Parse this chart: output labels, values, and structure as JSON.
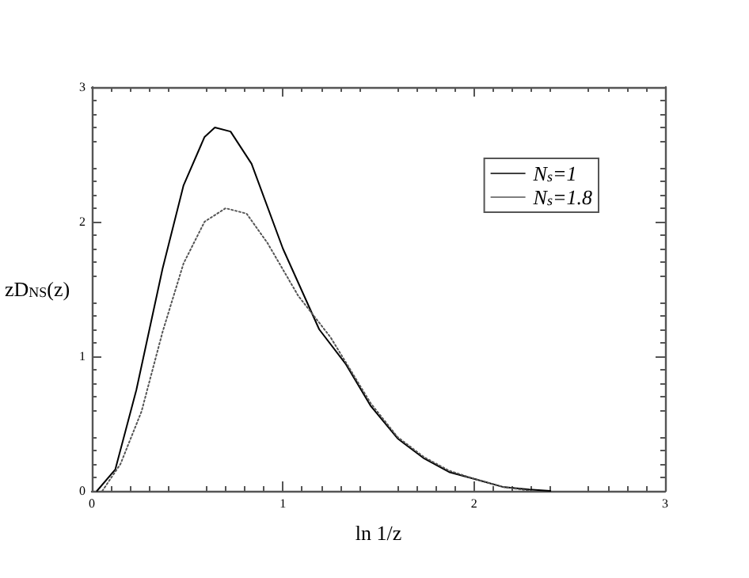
{
  "chart_data": {
    "type": "line",
    "xlabel": "ln 1/z",
    "ylabel": "zD$_{NS}$(z)",
    "xlim": [
      0,
      3
    ],
    "xticks": [
      0,
      1,
      2,
      3
    ],
    "ylim": [
      0,
      3
    ],
    "yticks": [
      0,
      1,
      2,
      3
    ],
    "grid": false,
    "legend": "top right",
    "marker": "none",
    "series": [
      {
        "name": "N$_{s}$=1",
        "color": "#000000",
        "line_style": "solid",
        "x": [
          0.027,
          0.123,
          0.233,
          0.37,
          0.48,
          0.59,
          0.644,
          0.726,
          0.836,
          1.0,
          1.19,
          1.33,
          1.46,
          1.6,
          1.74,
          1.87,
          2.0,
          2.15,
          2.29,
          2.4
        ],
        "values": [
          0,
          0.16,
          0.75,
          1.65,
          2.27,
          2.63,
          2.7,
          2.67,
          2.43,
          1.8,
          1.2,
          0.94,
          0.63,
          0.39,
          0.24,
          0.14,
          0.09,
          0.03,
          0.01,
          0
        ]
      },
      {
        "name": "N$_{s}$=1.8",
        "color": "#555555",
        "line_style": "dotted",
        "x": [
          0.055,
          0.15,
          0.26,
          0.37,
          0.48,
          0.59,
          0.7,
          0.81,
          0.92,
          1.08,
          1.25,
          1.46,
          1.6,
          1.74,
          1.87,
          2.0,
          2.15,
          2.3
        ],
        "values": [
          0,
          0.2,
          0.59,
          1.18,
          1.69,
          2.0,
          2.1,
          2.06,
          1.84,
          1.45,
          1.14,
          0.65,
          0.4,
          0.25,
          0.15,
          0.09,
          0.03,
          0
        ]
      }
    ]
  }
}
